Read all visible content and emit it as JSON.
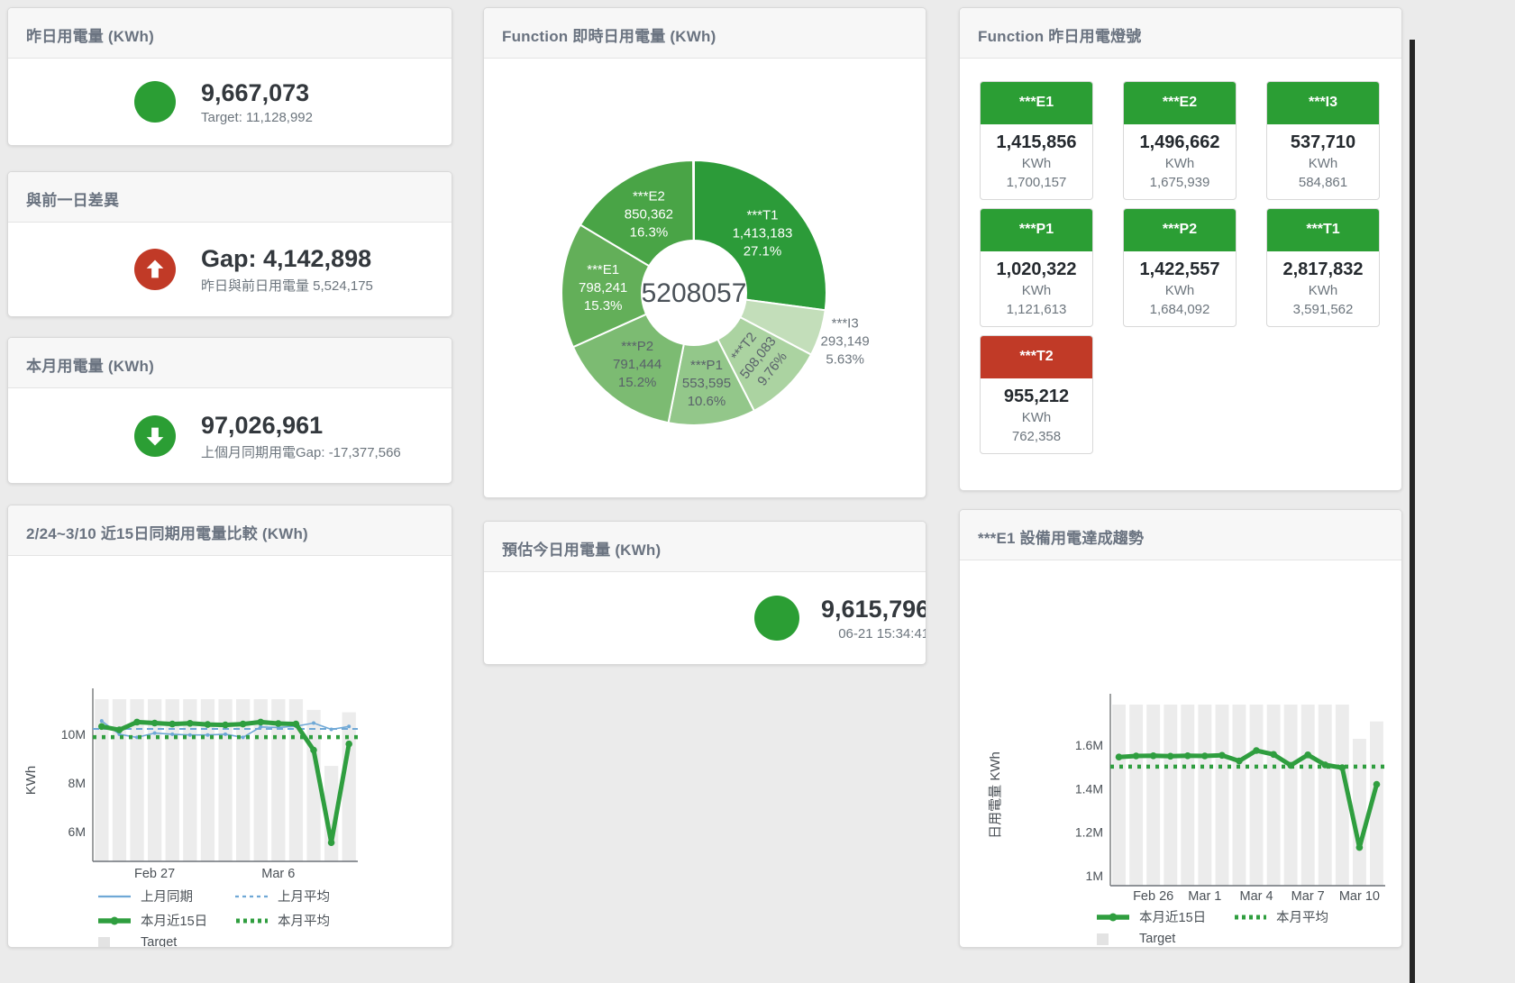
{
  "colors": {
    "green": "#2b9e34",
    "red": "#c13a27",
    "blue": "#6fa8d6",
    "line_green": "#2f9e3f",
    "bar_gray": "#ececec",
    "tick_text": "#4a5056",
    "legend_square": "#e3e3e3"
  },
  "kpis": {
    "yesterday": {
      "title": "昨日用電量 (KWh)",
      "value": "9,667,073",
      "sub": "Target: 11,128,992"
    },
    "gap": {
      "title": "與前一日差異",
      "value": "Gap: 4,142,898",
      "sub": "昨日與前日用電量 5,524,175"
    },
    "month": {
      "title": "本月用電量 (KWh)",
      "value": "97,026,961",
      "sub": "上個月同期用電Gap: -17,377,566"
    },
    "estimate": {
      "title": "預估今日用電量 (KWh)",
      "value": "9,615,796",
      "sub": "06-21 15:34:41"
    }
  },
  "donut_card": {
    "title": "Function 即時日用電量 (KWh)"
  },
  "compare_card": {
    "title": "2/24~3/10 近15日同期用電量比較 (KWh)"
  },
  "trend_card": {
    "title": "***E1 設備用電達成趨勢"
  },
  "lights": {
    "title": "Function 昨日用電燈號",
    "unit": "KWh",
    "tiles": [
      {
        "label": "***E1",
        "value": "1,415,856",
        "target": "1,700,157",
        "status": "green"
      },
      {
        "label": "***E2",
        "value": "1,496,662",
        "target": "1,675,939",
        "status": "green"
      },
      {
        "label": "***I3",
        "value": "537,710",
        "target": "584,861",
        "status": "green"
      },
      {
        "label": "***P1",
        "value": "1,020,322",
        "target": "1,121,613",
        "status": "green"
      },
      {
        "label": "***P2",
        "value": "1,422,557",
        "target": "1,684,092",
        "status": "green"
      },
      {
        "label": "***T1",
        "value": "2,817,832",
        "target": "3,591,562",
        "status": "green"
      },
      {
        "label": "***T2",
        "value": "955,212",
        "target": "762,358",
        "status": "red"
      }
    ]
  },
  "chart_data": [
    {
      "type": "pie",
      "title": "Function 即時日用電量 (KWh)",
      "center_label": "5208057",
      "legend_position": "none",
      "slices": [
        {
          "name": "***T1",
          "value": 1413183,
          "pct": "27.1%",
          "frac": 0.271,
          "color": "#2c9b39",
          "label": "inside",
          "label_color": "#ffffff",
          "rotate": 0
        },
        {
          "name": "***I3",
          "value": 293149,
          "pct": "5.63%",
          "frac": 0.0563,
          "color": "#c3deba",
          "label": "outside",
          "label_color": "#6c757d",
          "rotate": 0
        },
        {
          "name": "***T2",
          "value": 508083,
          "pct": "9.76%",
          "frac": 0.0976,
          "color": "#abd3a1",
          "label": "inside",
          "label_color": "#59616a",
          "rotate": -52
        },
        {
          "name": "***P1",
          "value": 553595,
          "pct": "10.6%",
          "frac": 0.106,
          "color": "#93c78a",
          "label": "inside",
          "label_color": "#59616a",
          "rotate": 0
        },
        {
          "name": "***P2",
          "value": 791444,
          "pct": "15.2%",
          "frac": 0.152,
          "color": "#7cbb72",
          "label": "inside",
          "label_color": "#59616a",
          "rotate": 0
        },
        {
          "name": "***E1",
          "value": 798241,
          "pct": "15.3%",
          "frac": 0.153,
          "color": "#63af59",
          "label": "inside",
          "label_color": "#ffffff",
          "rotate": 0
        },
        {
          "name": "***E2",
          "value": 850362,
          "pct": "16.3%",
          "frac": 0.163,
          "color": "#49a446",
          "label": "inside",
          "label_color": "#ffffff",
          "rotate": 0
        }
      ]
    },
    {
      "type": "line+bar",
      "title": "2/24~3/10 近15日同期用電量比較 (KWh)",
      "ylabel": "KWh",
      "unit": "M KWh",
      "grid": false,
      "ylim": [
        4.78,
        11.44
      ],
      "yticks": [
        {
          "v": 6,
          "label": "6M"
        },
        {
          "v": 8,
          "label": "8M"
        },
        {
          "v": 10,
          "label": "10M"
        }
      ],
      "xticks": [
        {
          "i": 3,
          "label": "Feb 27"
        },
        {
          "i": 10,
          "label": "Mar 6"
        }
      ],
      "target_bars": [
        11.44,
        11.44,
        11.44,
        11.44,
        11.44,
        11.44,
        11.44,
        11.44,
        11.44,
        11.44,
        11.44,
        11.44,
        11.0,
        8.7,
        10.9
      ],
      "series": [
        {
          "name": "上月同期",
          "type": "line",
          "values": [
            10.55,
            10.0,
            9.87,
            10.05,
            10.0,
            9.97,
            9.97,
            10.0,
            9.87,
            10.3,
            10.28,
            10.33,
            10.46,
            10.2,
            10.32
          ]
        },
        {
          "name": "上月平均",
          "type": "dashed",
          "value": 10.22
        },
        {
          "name": "本月近15日",
          "type": "line",
          "values": [
            10.32,
            10.18,
            10.5,
            10.46,
            10.42,
            10.45,
            10.4,
            10.38,
            10.42,
            10.5,
            10.44,
            10.42,
            9.35,
            5.55,
            9.6
          ]
        },
        {
          "name": "本月平均",
          "type": "dotted",
          "value": 9.88
        },
        {
          "name": "Target",
          "type": "bar"
        }
      ],
      "legend": [
        [
          "line-blue",
          "上月同期"
        ],
        [
          "dash-blue",
          "上月平均"
        ],
        [
          "line-green",
          "本月近15日"
        ],
        [
          "dot-green",
          "本月平均"
        ],
        [
          "square",
          "Target"
        ]
      ]
    },
    {
      "type": "line+bar",
      "title": "***E1 設備用電達成趨勢",
      "ylabel": "日用電量 KWh",
      "unit": "M KWh",
      "grid": false,
      "ylim": [
        0.954,
        1.7875
      ],
      "yticks": [
        {
          "v": 1.0,
          "label": "1M"
        },
        {
          "v": 1.2,
          "label": "1.2M"
        },
        {
          "v": 1.4,
          "label": "1.4M"
        },
        {
          "v": 1.6,
          "label": "1.6M"
        }
      ],
      "xticks": [
        {
          "i": 2,
          "label": "Feb 26"
        },
        {
          "i": 5,
          "label": "Mar 1"
        },
        {
          "i": 8,
          "label": "Mar 4"
        },
        {
          "i": 11,
          "label": "Mar 7"
        },
        {
          "i": 14,
          "label": "Mar 10"
        }
      ],
      "target_bars": [
        1.7875,
        1.7875,
        1.7875,
        1.7875,
        1.7875,
        1.7875,
        1.7875,
        1.7875,
        1.7875,
        1.7875,
        1.7875,
        1.7875,
        1.7875,
        1.7875,
        1.63,
        1.71
      ],
      "series": [
        {
          "name": "本月近15日",
          "type": "line",
          "values": [
            1.546,
            1.551,
            1.552,
            1.55,
            1.552,
            1.551,
            1.554,
            1.528,
            1.576,
            1.558,
            1.508,
            1.556,
            1.51,
            1.497,
            1.13,
            1.42
          ]
        },
        {
          "name": "本月平均",
          "type": "dotted",
          "value": 1.502
        },
        {
          "name": "Target",
          "type": "bar"
        }
      ],
      "legend": [
        [
          "line-green",
          "本月近15日"
        ],
        [
          "dot-green",
          "本月平均"
        ],
        [
          "square",
          "Target"
        ]
      ]
    }
  ]
}
